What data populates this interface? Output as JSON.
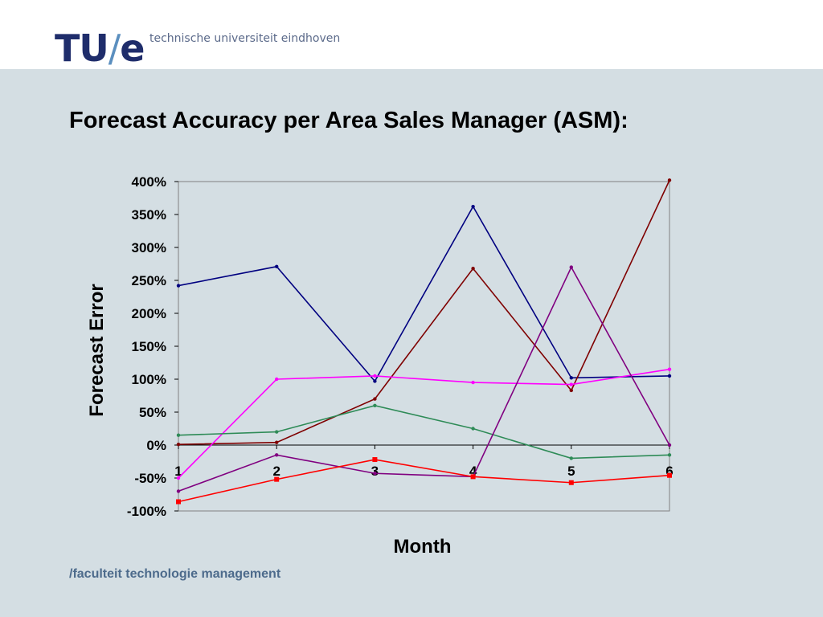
{
  "header": {
    "logo_text_left": "TU",
    "logo_slash": "/",
    "logo_text_right": "e",
    "university": "technische universiteit eindhoven"
  },
  "slide": {
    "title": "Forecast Accuracy per Area Sales Manager (ASM):",
    "footer": "/faculteit technologie management"
  },
  "colors": {
    "background": "#d4dee3",
    "header_bg": "#ffffff",
    "logo": "#1f2d6b",
    "logo_slash": "#5b8fbf"
  },
  "chart_data": {
    "type": "line",
    "title": "",
    "xlabel": "Month",
    "ylabel": "Forecast Error",
    "x": [
      1,
      2,
      3,
      4,
      5,
      6
    ],
    "x_tick_labels": [
      "1",
      "2",
      "3",
      "4",
      "5",
      "6"
    ],
    "ylim": [
      -100,
      400
    ],
    "y_ticks": [
      400,
      350,
      300,
      250,
      200,
      150,
      100,
      50,
      0,
      -50,
      -100
    ],
    "y_tick_labels": [
      "400%",
      "350%",
      "300%",
      "250%",
      "200%",
      "150%",
      "100%",
      "50%",
      "0%",
      "-50%",
      "-100%"
    ],
    "grid": false,
    "legend": "none",
    "series": [
      {
        "color": "#000080",
        "values": [
          242,
          271,
          97,
          362,
          102,
          105
        ]
      },
      {
        "color": "#7f0000",
        "values": [
          1,
          4,
          70,
          268,
          83,
          402
        ]
      },
      {
        "color": "#ff00ff",
        "values": [
          -50,
          100,
          105,
          95,
          92,
          115
        ]
      },
      {
        "color": "#2e8b57",
        "values": [
          15,
          20,
          60,
          25,
          -20,
          -15
        ]
      },
      {
        "color": "#800080",
        "values": [
          -70,
          -15,
          -43,
          -48,
          270,
          0
        ]
      },
      {
        "color": "#ff0000",
        "values": [
          -86,
          -52,
          -22,
          -48,
          -57,
          -46
        ]
      }
    ]
  }
}
